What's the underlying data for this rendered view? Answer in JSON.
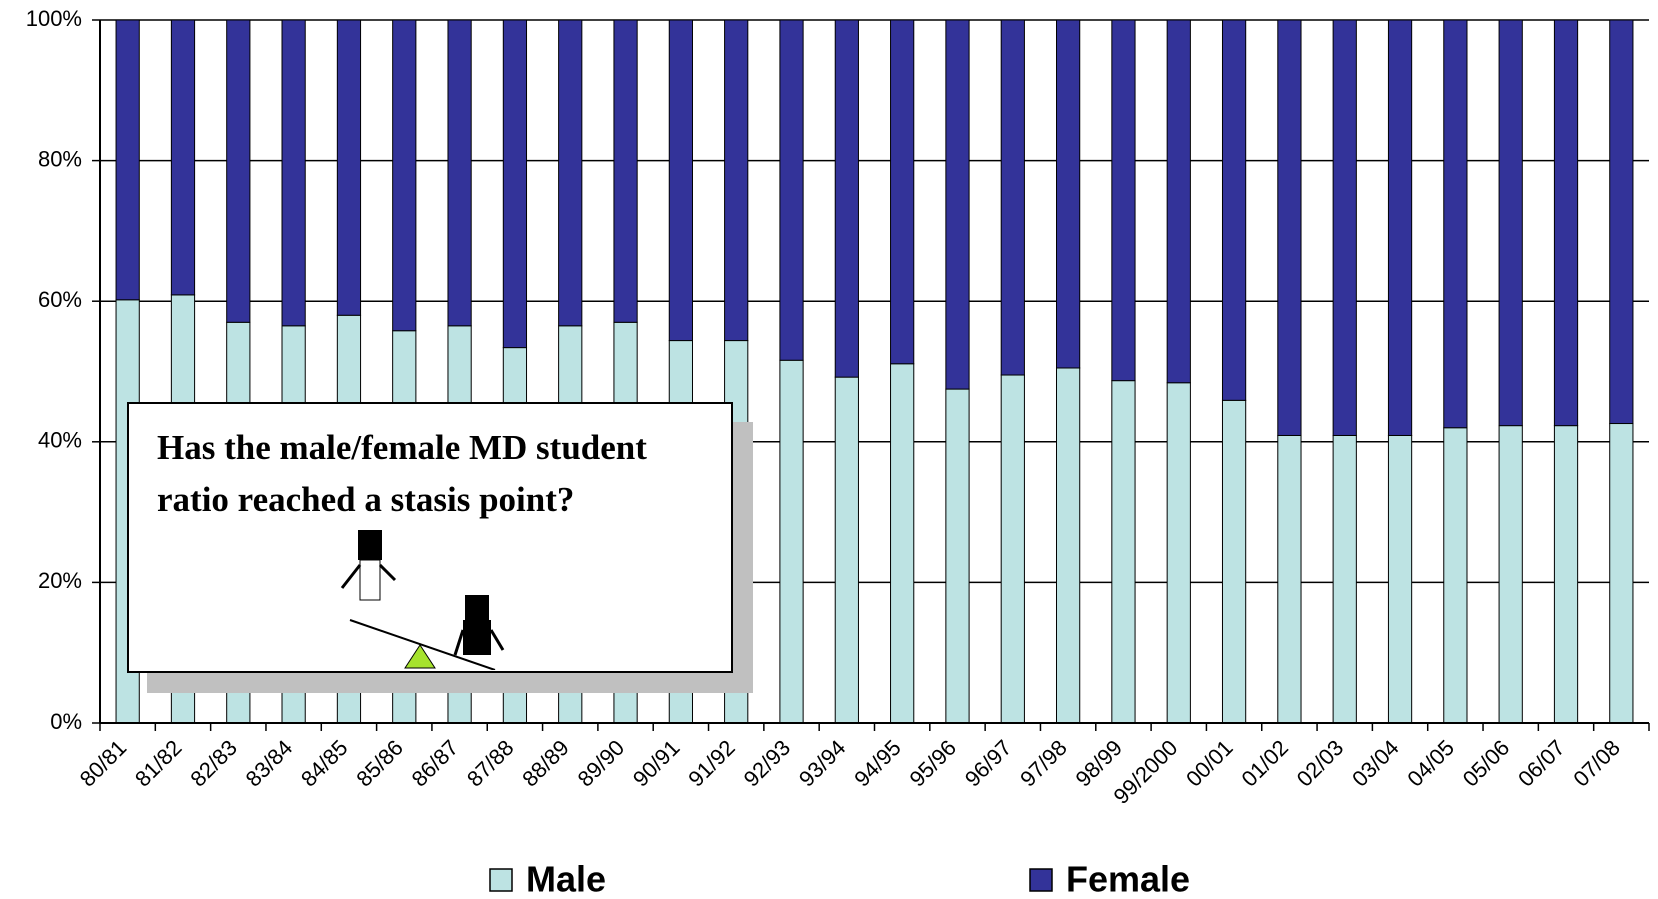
{
  "chart_data": {
    "type": "stacked_bar_100",
    "categories": [
      "80/81",
      "81/82",
      "82/83",
      "83/84",
      "84/85",
      "85/86",
      "86/87",
      "87/88",
      "88/89",
      "89/90",
      "90/91",
      "91/92",
      "92/93",
      "93/94",
      "94/95",
      "95/96",
      "96/97",
      "97/98",
      "98/99",
      "99/2000",
      "00/01",
      "01/02",
      "02/03",
      "03/04",
      "04/05",
      "05/06",
      "06/07",
      "07/08"
    ],
    "series": [
      {
        "name": "Male",
        "color": "#bde3e3",
        "values": [
          60.2,
          60.9,
          57,
          56.5,
          58,
          55.8,
          56.5,
          53.4,
          56.5,
          57,
          54.4,
          54.4,
          51.6,
          49.2,
          51.1,
          47.5,
          49.5,
          50.5,
          48.7,
          48.4,
          45.9,
          40.9,
          40.9,
          40.9,
          42,
          42.3,
          42.3,
          42.6
        ]
      },
      {
        "name": "Female",
        "color": "#333399",
        "values": [
          39.8,
          39.1,
          43,
          43.5,
          42,
          44.2,
          43.5,
          46.6,
          43.5,
          43,
          45.6,
          45.6,
          48.4,
          50.8,
          48.9,
          52.5,
          50.5,
          49.5,
          51.3,
          51.6,
          54.1,
          59.1,
          59.1,
          59.1,
          58,
          57.7,
          57.7,
          57.4
        ]
      }
    ],
    "ylim": [
      0,
      100
    ],
    "yticks": [
      {
        "value": 0,
        "label": "0%"
      },
      {
        "value": 20,
        "label": "20%"
      },
      {
        "value": 40,
        "label": "40%"
      },
      {
        "value": 60,
        "label": "60%"
      },
      {
        "value": 80,
        "label": "80%"
      },
      {
        "value": 100,
        "label": "100%"
      }
    ],
    "grid": true,
    "legend": "bottom",
    "annotation": "Has the male/female MD student ratio reached a stasis point?"
  }
}
